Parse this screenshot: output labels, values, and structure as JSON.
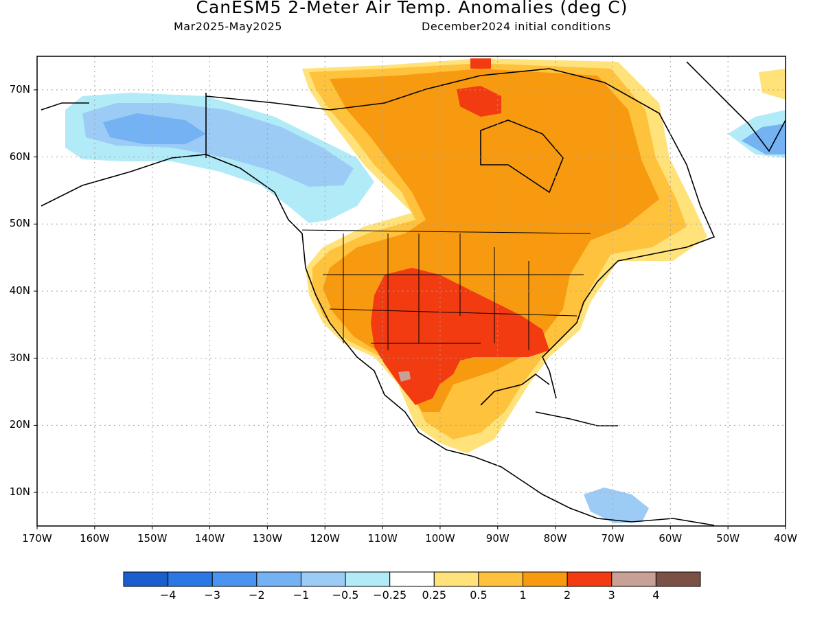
{
  "header": {
    "title": "CanESM5 2-Meter Air Temp. Anomalies (deg C)",
    "period": "Mar2025-May2025",
    "init": "December2024 initial conditions"
  },
  "map": {
    "projection": "latlon",
    "lon_range": [
      -170,
      -40
    ],
    "lat_range": [
      5,
      75
    ],
    "gridlines": true,
    "lat_labels": [
      "70N",
      "60N",
      "50N",
      "40N",
      "30N",
      "20N",
      "10N"
    ],
    "lon_labels": [
      "170W",
      "160W",
      "150W",
      "140W",
      "130W",
      "120W",
      "110W",
      "100W",
      "90W",
      "80W",
      "70W",
      "60W",
      "50W",
      "40W"
    ]
  },
  "legend": {
    "colors": [
      "#1a5fcc",
      "#2b78e4",
      "#4a94ef",
      "#74b2f4",
      "#9cccf6",
      "#b2ebf8",
      "#ffffff",
      "#ffe27a",
      "#ffc23d",
      "#f89a10",
      "#f23b10",
      "#c8a096",
      "#7b5146"
    ],
    "labels": [
      "-4",
      "-3",
      "-2",
      "-1",
      "-0.5",
      "-0.25",
      "0.25",
      "0.5",
      "1",
      "2",
      "3",
      "4"
    ]
  }
}
